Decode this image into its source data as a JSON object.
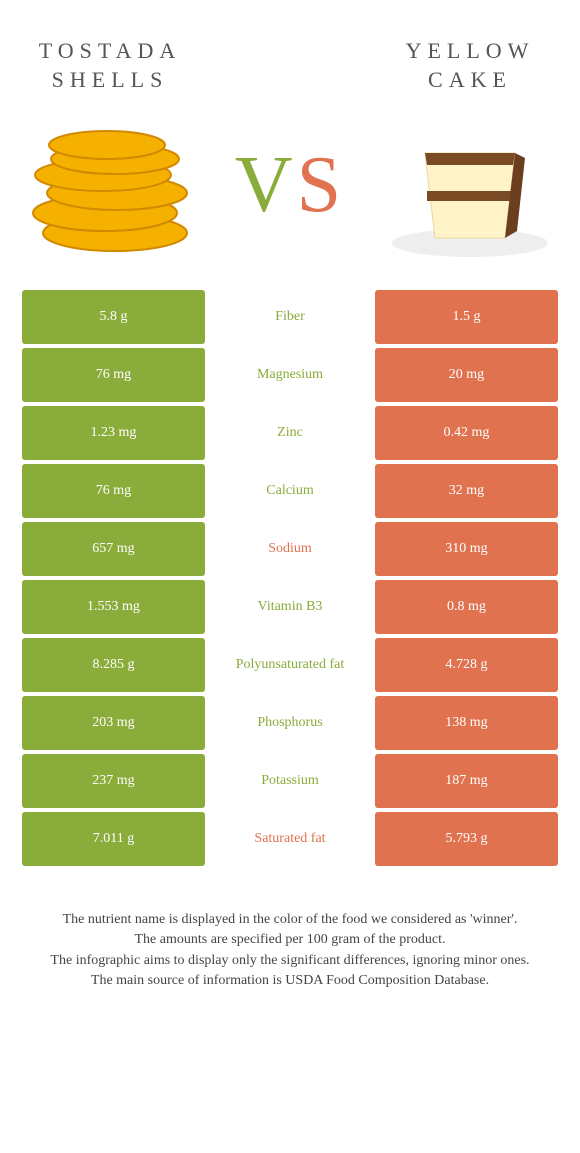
{
  "header": {
    "left_title": "Tostada shells",
    "right_title": "Yellow cake",
    "vs_v": "V",
    "vs_s": "S"
  },
  "colors": {
    "left": "#8aac3a",
    "right": "#e0724f",
    "text": "#444444",
    "tostada_fill": "#f5b000",
    "tostada_stroke": "#d18a00",
    "cake_body": "#fff4c9",
    "cake_frosting": "#7a4a25",
    "plate": "#e8e8e8"
  },
  "rows": [
    {
      "label": "Fiber",
      "left": "5.8 g",
      "right": "1.5 g",
      "winner": "left"
    },
    {
      "label": "Magnesium",
      "left": "76 mg",
      "right": "20 mg",
      "winner": "left"
    },
    {
      "label": "Zinc",
      "left": "1.23 mg",
      "right": "0.42 mg",
      "winner": "left"
    },
    {
      "label": "Calcium",
      "left": "76 mg",
      "right": "32 mg",
      "winner": "left"
    },
    {
      "label": "Sodium",
      "left": "657 mg",
      "right": "310 mg",
      "winner": "right"
    },
    {
      "label": "Vitamin B3",
      "left": "1.553 mg",
      "right": "0.8 mg",
      "winner": "left"
    },
    {
      "label": "Polyunsaturated fat",
      "left": "8.285 g",
      "right": "4.728 g",
      "winner": "left"
    },
    {
      "label": "Phosphorus",
      "left": "203 mg",
      "right": "138 mg",
      "winner": "left"
    },
    {
      "label": "Potassium",
      "left": "237 mg",
      "right": "187 mg",
      "winner": "left"
    },
    {
      "label": "Saturated fat",
      "left": "7.011 g",
      "right": "5.793 g",
      "winner": "right"
    }
  ],
  "footer": {
    "line1": "The nutrient name is displayed in the color of the food we considered as 'winner'.",
    "line2": "The amounts are specified per 100 gram of the product.",
    "line3": "The infographic aims to display only the significant differences, ignoring minor ones.",
    "line4": "The main source of information is USDA Food Composition Database."
  }
}
